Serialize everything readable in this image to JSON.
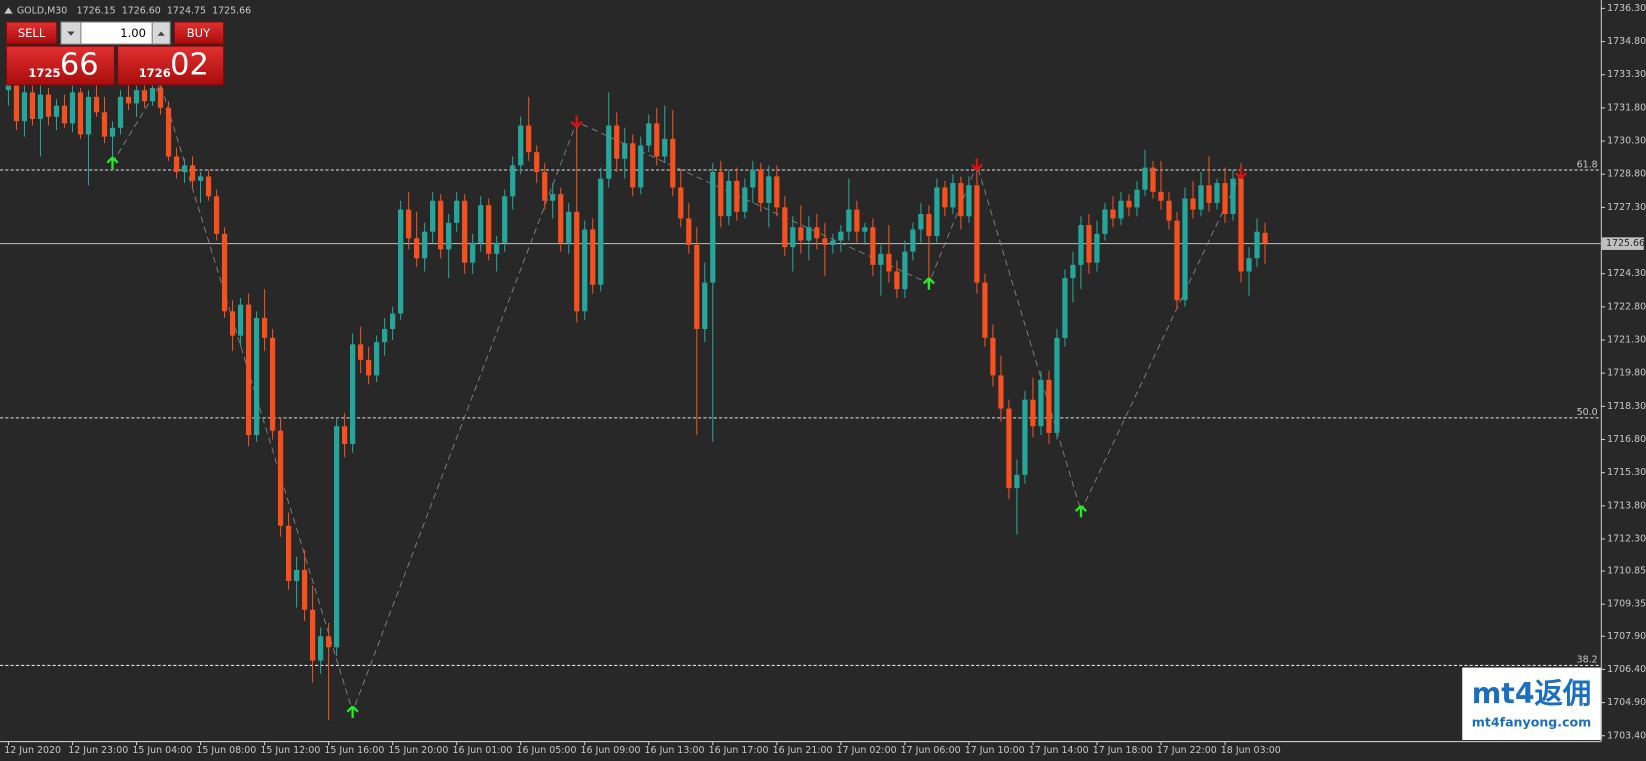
{
  "header": {
    "symbol": "GOLD,M30",
    "values": [
      "1726.15",
      "1726.60",
      "1724.75",
      "1725.66"
    ]
  },
  "trade_panel": {
    "sell": "SELL",
    "buy": "BUY",
    "lots": "1.00",
    "bid_big": "1725",
    "bid_small": "66",
    "ask_big": "1726",
    "ask_small": "02"
  },
  "watermark": {
    "logo": "mt4返佣",
    "url": "mt4fanyong.com"
  },
  "chart_data": {
    "type": "candlestick",
    "up_color": "#26a69a",
    "down_color": "#f4511e",
    "ylim": [
      1703.16,
      1736.68
    ],
    "yticks": [
      {
        "value": 1736.3,
        "label": "1736.30"
      },
      {
        "value": 1734.8,
        "label": "1734.80"
      },
      {
        "value": 1733.3,
        "label": "1733.30"
      },
      {
        "value": 1731.8,
        "label": "1731.80"
      },
      {
        "value": 1730.3,
        "label": "1730.30"
      },
      {
        "value": 1728.8,
        "label": "1728.80"
      },
      {
        "value": 1727.3,
        "label": "1727.30"
      },
      {
        "value": 1724.3,
        "label": "1724.30"
      },
      {
        "value": 1722.8,
        "label": "1722.80"
      },
      {
        "value": 1721.3,
        "label": "1721.30"
      },
      {
        "value": 1719.8,
        "label": "1719.80"
      },
      {
        "value": 1718.3,
        "label": "1718.30"
      },
      {
        "value": 1716.8,
        "label": "1716.80"
      },
      {
        "value": 1715.3,
        "label": "1715.30"
      },
      {
        "value": 1713.8,
        "label": "1713.80"
      },
      {
        "value": 1712.3,
        "label": "1712.30"
      },
      1710.85,
      1709.35,
      {
        "value": 1707.9,
        "label": "1707.90"
      },
      {
        "value": 1706.4,
        "label": "1706.40"
      },
      {
        "value": 1704.9,
        "label": "1704.90"
      },
      {
        "value": 1703.4,
        "label": "1703.40"
      }
    ],
    "current_price": {
      "value": 1725.66,
      "label": "1725.66"
    },
    "fib_levels": [
      {
        "value": 1728.99,
        "label": "61.8"
      },
      {
        "value": 1717.78,
        "label": "50.0"
      },
      {
        "value": 1706.58,
        "label": "38.2"
      }
    ],
    "categories": [
      "12 Jun 2020",
      null,
      null,
      null,
      null,
      null,
      null,
      null,
      "12 Jun 23:00",
      null,
      null,
      null,
      null,
      null,
      null,
      null,
      "15 Jun 04:00",
      null,
      null,
      null,
      null,
      null,
      null,
      null,
      "15 Jun 08:00",
      null,
      null,
      null,
      null,
      null,
      null,
      null,
      "15 Jun 12:00",
      null,
      null,
      null,
      null,
      null,
      null,
      null,
      "15 Jun 16:00",
      null,
      null,
      null,
      null,
      null,
      null,
      null,
      "15 Jun 20:00",
      null,
      null,
      null,
      null,
      null,
      null,
      null,
      "16 Jun 01:00",
      null,
      null,
      null,
      null,
      null,
      null,
      null,
      "16 Jun 05:00",
      null,
      null,
      null,
      null,
      null,
      null,
      null,
      "16 Jun 09:00",
      null,
      null,
      null,
      null,
      null,
      null,
      null,
      "16 Jun 13:00",
      null,
      null,
      null,
      null,
      null,
      null,
      null,
      "16 Jun 17:00",
      null,
      null,
      null,
      null,
      null,
      null,
      null,
      "16 Jun 21:00",
      null,
      null,
      null,
      null,
      null,
      null,
      null,
      "17 Jun 02:00",
      null,
      null,
      null,
      null,
      null,
      null,
      null,
      "17 Jun 06:00",
      null,
      null,
      null,
      null,
      null,
      null,
      null,
      "17 Jun 10:00",
      null,
      null,
      null,
      null,
      null,
      null,
      null,
      "17 Jun 14:00",
      null,
      null,
      null,
      null,
      null,
      null,
      null,
      "17 Jun 18:00",
      null,
      null,
      null,
      null,
      null,
      null,
      null,
      "17 Jun 22:00",
      null,
      null,
      null,
      null,
      null,
      null,
      null,
      "18 Jun 03:00",
      null,
      null,
      null,
      null,
      null
    ],
    "values": [
      [
        1732.6,
        1733.4,
        1731.9,
        1732.9
      ],
      [
        1732.9,
        1733.2,
        1730.8,
        1731.2
      ],
      [
        1731.2,
        1732.9,
        1730.5,
        1732.5
      ],
      [
        1732.5,
        1732.8,
        1731.0,
        1731.3
      ],
      [
        1731.3,
        1732.9,
        1729.6,
        1732.4
      ],
      [
        1732.4,
        1732.7,
        1731.0,
        1731.4
      ],
      [
        1731.4,
        1732.2,
        1730.8,
        1731.9
      ],
      [
        1731.9,
        1732.4,
        1730.9,
        1731.1
      ],
      [
        1731.1,
        1732.8,
        1730.7,
        1732.5
      ],
      [
        1732.5,
        1732.7,
        1730.4,
        1730.6
      ],
      [
        1730.6,
        1732.6,
        1728.3,
        1732.3
      ],
      [
        1732.3,
        1733.0,
        1731.4,
        1731.6
      ],
      [
        1731.6,
        1732.3,
        1730.2,
        1730.5
      ],
      [
        1730.5,
        1731.2,
        1729.3,
        1730.9
      ],
      [
        1730.9,
        1732.6,
        1730.6,
        1732.3
      ],
      [
        1732.3,
        1733.1,
        1731.7,
        1732.0
      ],
      [
        1732.0,
        1732.8,
        1731.4,
        1732.6
      ],
      [
        1732.6,
        1733.2,
        1731.8,
        1732.1
      ],
      [
        1732.1,
        1733.0,
        1731.9,
        1732.7
      ],
      [
        1732.7,
        1733.5,
        1731.5,
        1731.8
      ],
      [
        1731.8,
        1732.1,
        1729.4,
        1729.6
      ],
      [
        1729.6,
        1730.0,
        1728.6,
        1728.9
      ],
      [
        1728.9,
        1729.5,
        1728.4,
        1729.2
      ],
      [
        1729.2,
        1729.6,
        1728.2,
        1728.5
      ],
      [
        1728.5,
        1728.9,
        1727.5,
        1728.7
      ],
      [
        1728.7,
        1729.0,
        1727.6,
        1727.8
      ],
      [
        1727.8,
        1728.1,
        1725.8,
        1726.1
      ],
      [
        1726.1,
        1726.4,
        1722.3,
        1722.6
      ],
      [
        1722.6,
        1723.1,
        1720.8,
        1721.5
      ],
      [
        1721.5,
        1723.2,
        1721.0,
        1722.9
      ],
      [
        1722.9,
        1723.4,
        1716.5,
        1717.0
      ],
      [
        1717.0,
        1722.6,
        1716.7,
        1722.3
      ],
      [
        1722.3,
        1723.6,
        1720.8,
        1721.4
      ],
      [
        1721.4,
        1721.8,
        1716.8,
        1717.2
      ],
      [
        1717.2,
        1717.8,
        1712.4,
        1712.9
      ],
      [
        1712.9,
        1713.5,
        1710.0,
        1710.4
      ],
      [
        1710.4,
        1711.5,
        1709.2,
        1710.9
      ],
      [
        1710.9,
        1711.8,
        1708.6,
        1709.1
      ],
      [
        1709.1,
        1710.2,
        1705.8,
        1706.8
      ],
      [
        1706.8,
        1708.3,
        1706.2,
        1707.9
      ],
      [
        1707.9,
        1708.5,
        1704.1,
        1707.4
      ],
      [
        1707.4,
        1717.8,
        1707.0,
        1717.4
      ],
      [
        1717.4,
        1718.0,
        1716.0,
        1716.6
      ],
      [
        1716.6,
        1721.6,
        1716.2,
        1721.1
      ],
      [
        1721.1,
        1721.9,
        1719.8,
        1720.4
      ],
      [
        1720.4,
        1721.0,
        1719.3,
        1719.7
      ],
      [
        1719.7,
        1721.5,
        1719.4,
        1721.2
      ],
      [
        1721.2,
        1722.3,
        1720.6,
        1721.8
      ],
      [
        1721.8,
        1722.8,
        1721.3,
        1722.5
      ],
      [
        1722.5,
        1727.6,
        1722.2,
        1727.2
      ],
      [
        1727.2,
        1728.0,
        1725.4,
        1725.9
      ],
      [
        1725.9,
        1727.1,
        1724.6,
        1725.0
      ],
      [
        1725.0,
        1726.6,
        1724.4,
        1726.2
      ],
      [
        1726.2,
        1728.0,
        1725.7,
        1727.6
      ],
      [
        1727.6,
        1727.9,
        1725.0,
        1725.4
      ],
      [
        1725.4,
        1727.0,
        1724.1,
        1726.6
      ],
      [
        1726.6,
        1728.0,
        1726.2,
        1727.6
      ],
      [
        1727.6,
        1727.9,
        1724.3,
        1724.8
      ],
      [
        1724.8,
        1726.1,
        1724.3,
        1725.7
      ],
      [
        1725.7,
        1727.8,
        1725.3,
        1727.4
      ],
      [
        1727.4,
        1727.7,
        1724.9,
        1725.2
      ],
      [
        1725.2,
        1726.0,
        1724.4,
        1725.7
      ],
      [
        1725.7,
        1728.1,
        1725.3,
        1727.8
      ],
      [
        1727.8,
        1729.6,
        1727.2,
        1729.2
      ],
      [
        1729.2,
        1731.4,
        1728.8,
        1731.0
      ],
      [
        1731.0,
        1732.3,
        1729.4,
        1729.8
      ],
      [
        1729.8,
        1730.1,
        1728.4,
        1728.9
      ],
      [
        1728.9,
        1729.3,
        1727.2,
        1727.6
      ],
      [
        1727.6,
        1728.4,
        1726.8,
        1727.9
      ],
      [
        1727.9,
        1728.2,
        1725.3,
        1725.7
      ],
      [
        1725.7,
        1727.5,
        1725.2,
        1727.1
      ],
      [
        1727.1,
        1731.2,
        1722.1,
        1722.6
      ],
      [
        1722.6,
        1726.7,
        1722.2,
        1726.3
      ],
      [
        1726.3,
        1726.8,
        1723.4,
        1723.8
      ],
      [
        1723.8,
        1729.1,
        1723.5,
        1728.6
      ],
      [
        1728.6,
        1732.5,
        1728.2,
        1731.0
      ],
      [
        1731.0,
        1731.6,
        1728.9,
        1729.5
      ],
      [
        1729.5,
        1730.9,
        1728.6,
        1730.2
      ],
      [
        1730.2,
        1730.6,
        1727.8,
        1728.2
      ],
      [
        1728.2,
        1730.5,
        1727.9,
        1730.1
      ],
      [
        1730.1,
        1731.5,
        1729.8,
        1731.1
      ],
      [
        1731.1,
        1731.8,
        1729.2,
        1729.6
      ],
      [
        1729.6,
        1731.9,
        1729.3,
        1730.4
      ],
      [
        1730.4,
        1731.7,
        1727.8,
        1728.2
      ],
      [
        1728.2,
        1729.0,
        1726.4,
        1726.8
      ],
      [
        1726.8,
        1727.5,
        1725.2,
        1725.6
      ],
      [
        1725.6,
        1726.4,
        1717.0,
        1721.8
      ],
      [
        1721.8,
        1724.8,
        1721.2,
        1723.9
      ],
      [
        1723.9,
        1729.3,
        1716.7,
        1728.9
      ],
      [
        1728.9,
        1729.4,
        1726.4,
        1726.9
      ],
      [
        1726.9,
        1729.0,
        1726.5,
        1728.5
      ],
      [
        1728.5,
        1729.1,
        1726.7,
        1727.1
      ],
      [
        1727.1,
        1728.6,
        1726.8,
        1728.2
      ],
      [
        1728.2,
        1729.4,
        1727.5,
        1729.0
      ],
      [
        1729.0,
        1729.3,
        1727.1,
        1727.5
      ],
      [
        1727.5,
        1729.2,
        1726.4,
        1728.7
      ],
      [
        1728.7,
        1729.2,
        1726.9,
        1727.3
      ],
      [
        1727.3,
        1727.8,
        1725.1,
        1725.5
      ],
      [
        1725.5,
        1726.9,
        1724.4,
        1726.4
      ],
      [
        1726.4,
        1727.4,
        1725.2,
        1725.8
      ],
      [
        1725.8,
        1726.9,
        1724.9,
        1726.4
      ],
      [
        1726.4,
        1727.0,
        1725.4,
        1725.9
      ],
      [
        1725.9,
        1726.6,
        1724.2,
        1725.6
      ],
      [
        1725.6,
        1726.1,
        1725.2,
        1725.8
      ],
      [
        1725.8,
        1726.5,
        1725.3,
        1726.2
      ],
      [
        1726.2,
        1728.6,
        1725.8,
        1727.2
      ],
      [
        1727.2,
        1727.6,
        1725.7,
        1726.2
      ],
      [
        1726.2,
        1726.6,
        1725.6,
        1726.4
      ],
      [
        1726.4,
        1726.8,
        1724.2,
        1724.7
      ],
      [
        1724.7,
        1725.6,
        1723.3,
        1725.2
      ],
      [
        1725.2,
        1726.5,
        1723.9,
        1724.4
      ],
      [
        1724.4,
        1724.9,
        1723.2,
        1723.6
      ],
      [
        1723.6,
        1725.8,
        1723.2,
        1725.3
      ],
      [
        1725.3,
        1726.6,
        1724.9,
        1726.3
      ],
      [
        1726.3,
        1727.5,
        1725.7,
        1727.0
      ],
      [
        1727.0,
        1727.4,
        1724.0,
        1726.0
      ],
      [
        1726.0,
        1728.6,
        1725.7,
        1728.2
      ],
      [
        1728.2,
        1728.5,
        1726.9,
        1727.3
      ],
      [
        1727.3,
        1728.8,
        1727.0,
        1728.4
      ],
      [
        1728.4,
        1728.7,
        1726.3,
        1726.9
      ],
      [
        1726.9,
        1728.7,
        1726.6,
        1728.3
      ],
      [
        1728.3,
        1729.3,
        1723.4,
        1723.9
      ],
      [
        1723.9,
        1724.3,
        1721.0,
        1721.4
      ],
      [
        1721.4,
        1722.0,
        1719.2,
        1719.7
      ],
      [
        1719.7,
        1720.6,
        1717.6,
        1718.2
      ],
      [
        1718.2,
        1718.6,
        1714.1,
        1714.6
      ],
      [
        1714.6,
        1715.9,
        1712.5,
        1715.2
      ],
      [
        1715.2,
        1719.0,
        1714.8,
        1718.6
      ],
      [
        1718.6,
        1719.6,
        1716.9,
        1717.4
      ],
      [
        1717.4,
        1719.9,
        1717.0,
        1719.5
      ],
      [
        1719.5,
        1719.9,
        1716.6,
        1717.1
      ],
      [
        1717.1,
        1721.8,
        1716.8,
        1721.4
      ],
      [
        1721.4,
        1724.5,
        1721.0,
        1724.1
      ],
      [
        1724.1,
        1725.3,
        1723.0,
        1724.7
      ],
      [
        1724.7,
        1726.9,
        1723.6,
        1726.5
      ],
      [
        1726.5,
        1727.0,
        1724.3,
        1724.8
      ],
      [
        1724.8,
        1726.7,
        1724.4,
        1726.1
      ],
      [
        1726.1,
        1727.5,
        1725.8,
        1727.2
      ],
      [
        1727.2,
        1727.8,
        1726.4,
        1726.8
      ],
      [
        1726.8,
        1728.0,
        1726.5,
        1727.6
      ],
      [
        1727.6,
        1727.9,
        1726.9,
        1727.3
      ],
      [
        1727.3,
        1728.5,
        1726.9,
        1728.1
      ],
      [
        1728.1,
        1729.9,
        1727.8,
        1729.1
      ],
      [
        1729.1,
        1729.4,
        1727.7,
        1728.0
      ],
      [
        1728.0,
        1729.4,
        1727.2,
        1727.6
      ],
      [
        1727.6,
        1728.0,
        1726.3,
        1726.7
      ],
      [
        1726.7,
        1727.1,
        1722.7,
        1723.1
      ],
      [
        1723.1,
        1728.2,
        1722.8,
        1727.7
      ],
      [
        1727.7,
        1728.5,
        1726.8,
        1727.2
      ],
      [
        1727.2,
        1728.9,
        1726.9,
        1728.3
      ],
      [
        1728.3,
        1729.6,
        1727.1,
        1727.5
      ],
      [
        1727.5,
        1728.6,
        1727.2,
        1728.4
      ],
      [
        1728.4,
        1729.1,
        1726.6,
        1727.0
      ],
      [
        1727.0,
        1729.0,
        1726.7,
        1728.6
      ],
      [
        1728.6,
        1729.3,
        1723.9,
        1724.4
      ],
      [
        1724.4,
        1725.5,
        1723.3,
        1725.0
      ],
      [
        1725.0,
        1726.8,
        1724.6,
        1726.2
      ],
      [
        1726.15,
        1726.6,
        1724.75,
        1725.66
      ]
    ],
    "zigzag": {
      "color": "#8a8a8a",
      "x": [
        13,
        19,
        43,
        71,
        115,
        121,
        134,
        154
      ],
      "values": [
        1729.32,
        1732.88,
        1704.49,
        1731.17,
        1723.86,
        1729.23,
        1713.56,
        1728.85
      ]
    },
    "buy_arrows": {
      "color": "#22ee22",
      "x": [
        13,
        43,
        115,
        134
      ],
      "values": [
        1729.32,
        1704.49,
        1723.86,
        1713.56
      ]
    },
    "sell_arrows": {
      "color": "#e01010",
      "x": [
        71,
        121,
        154
      ],
      "values": [
        1731.17,
        1729.23,
        1728.85
      ]
    }
  }
}
